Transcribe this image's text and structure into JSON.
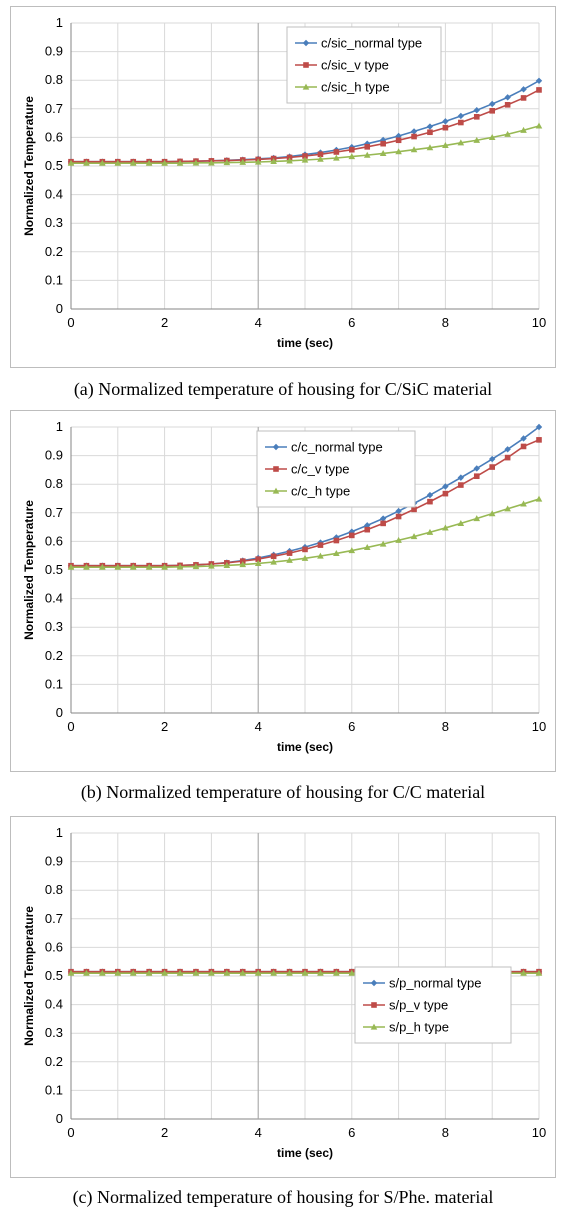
{
  "chart_data": [
    {
      "type": "line",
      "xlabel": "time (sec)",
      "ylabel": "Normalized Temperature",
      "xlim": [
        0,
        10
      ],
      "ylim": [
        0,
        1
      ],
      "xticks": [
        "0",
        "2",
        "4",
        "6",
        "8",
        "10"
      ],
      "yticks": [
        "0",
        "0.1",
        "0.2",
        "0.3",
        "0.4",
        "0.5",
        "0.6",
        "0.7",
        "0.8",
        "0.9",
        "1"
      ],
      "grid": true,
      "legend_position": "top-right",
      "x": [
        0,
        0.33,
        0.67,
        1.0,
        1.33,
        1.67,
        2.0,
        2.33,
        2.67,
        3.0,
        3.33,
        3.67,
        4.0,
        4.33,
        4.67,
        5.0,
        5.33,
        5.67,
        6.0,
        6.33,
        6.67,
        7.0,
        7.33,
        7.67,
        8.0,
        8.33,
        8.67,
        9.0,
        9.33,
        9.67,
        10.0
      ],
      "series": [
        {
          "name": "c/sic_normal type",
          "color": "#4a7ebb",
          "marker": "diamond",
          "values": [
            0.515,
            0.515,
            0.515,
            0.515,
            0.515,
            0.515,
            0.515,
            0.516,
            0.517,
            0.518,
            0.52,
            0.522,
            0.525,
            0.528,
            0.533,
            0.54,
            0.547,
            0.556,
            0.566,
            0.578,
            0.591,
            0.605,
            0.621,
            0.638,
            0.656,
            0.675,
            0.695,
            0.717,
            0.74,
            0.768,
            0.798
          ]
        },
        {
          "name": "c/sic_v type",
          "color": "#be4b48",
          "marker": "square",
          "values": [
            0.515,
            0.515,
            0.515,
            0.515,
            0.515,
            0.515,
            0.515,
            0.516,
            0.517,
            0.518,
            0.519,
            0.521,
            0.523,
            0.526,
            0.53,
            0.535,
            0.541,
            0.549,
            0.557,
            0.567,
            0.578,
            0.59,
            0.603,
            0.618,
            0.634,
            0.652,
            0.672,
            0.693,
            0.714,
            0.738,
            0.766
          ]
        },
        {
          "name": "c/sic_h type",
          "color": "#98b954",
          "marker": "triangle",
          "values": [
            0.51,
            0.51,
            0.51,
            0.51,
            0.51,
            0.51,
            0.51,
            0.51,
            0.511,
            0.511,
            0.512,
            0.513,
            0.514,
            0.516,
            0.518,
            0.521,
            0.524,
            0.528,
            0.533,
            0.538,
            0.544,
            0.55,
            0.557,
            0.564,
            0.572,
            0.581,
            0.59,
            0.6,
            0.611,
            0.625,
            0.64
          ]
        }
      ]
    },
    {
      "type": "line",
      "xlabel": "time (sec)",
      "ylabel": "Normalized Temperature",
      "xlim": [
        0,
        10
      ],
      "ylim": [
        0,
        1
      ],
      "xticks": [
        "0",
        "2",
        "4",
        "6",
        "8",
        "10"
      ],
      "yticks": [
        "0",
        "0.1",
        "0.2",
        "0.3",
        "0.4",
        "0.5",
        "0.6",
        "0.7",
        "0.8",
        "0.9",
        "1"
      ],
      "grid": true,
      "legend_position": "top-center",
      "x": [
        0,
        0.33,
        0.67,
        1.0,
        1.33,
        1.67,
        2.0,
        2.33,
        2.67,
        3.0,
        3.33,
        3.67,
        4.0,
        4.33,
        4.67,
        5.0,
        5.33,
        5.67,
        6.0,
        6.33,
        6.67,
        7.0,
        7.33,
        7.67,
        8.0,
        8.33,
        8.67,
        9.0,
        9.33,
        9.67,
        10.0
      ],
      "series": [
        {
          "name": "c/c_normal type",
          "color": "#4a7ebb",
          "marker": "diamond",
          "values": [
            0.515,
            0.515,
            0.515,
            0.515,
            0.515,
            0.515,
            0.515,
            0.516,
            0.518,
            0.521,
            0.526,
            0.533,
            0.542,
            0.553,
            0.566,
            0.58,
            0.596,
            0.614,
            0.634,
            0.656,
            0.68,
            0.706,
            0.733,
            0.762,
            0.792,
            0.823,
            0.855,
            0.888,
            0.922,
            0.96,
            1.0
          ]
        },
        {
          "name": "c/c_v type",
          "color": "#be4b48",
          "marker": "square",
          "values": [
            0.515,
            0.515,
            0.515,
            0.515,
            0.515,
            0.515,
            0.515,
            0.516,
            0.518,
            0.521,
            0.525,
            0.531,
            0.538,
            0.548,
            0.559,
            0.572,
            0.587,
            0.603,
            0.621,
            0.641,
            0.663,
            0.687,
            0.712,
            0.739,
            0.767,
            0.797,
            0.828,
            0.86,
            0.893,
            0.932,
            0.955
          ]
        },
        {
          "name": "c/c_h type",
          "color": "#98b954",
          "marker": "triangle",
          "values": [
            0.51,
            0.51,
            0.51,
            0.51,
            0.51,
            0.51,
            0.51,
            0.511,
            0.512,
            0.514,
            0.516,
            0.519,
            0.523,
            0.528,
            0.534,
            0.541,
            0.549,
            0.558,
            0.568,
            0.579,
            0.591,
            0.604,
            0.617,
            0.632,
            0.647,
            0.663,
            0.68,
            0.697,
            0.714,
            0.731,
            0.748
          ]
        }
      ]
    },
    {
      "type": "line",
      "xlabel": "time (sec)",
      "ylabel": "Normalized Temperature",
      "xlim": [
        0,
        10
      ],
      "ylim": [
        0,
        1
      ],
      "xticks": [
        "0",
        "2",
        "4",
        "6",
        "8",
        "10"
      ],
      "yticks": [
        "0",
        "0.1",
        "0.2",
        "0.3",
        "0.4",
        "0.5",
        "0.6",
        "0.7",
        "0.8",
        "0.9",
        "1"
      ],
      "grid": true,
      "legend_position": "center-right",
      "x": [
        0,
        0.33,
        0.67,
        1.0,
        1.33,
        1.67,
        2.0,
        2.33,
        2.67,
        3.0,
        3.33,
        3.67,
        4.0,
        4.33,
        4.67,
        5.0,
        5.33,
        5.67,
        6.0,
        6.33,
        6.67,
        7.0,
        7.33,
        7.67,
        8.0,
        8.33,
        8.67,
        9.0,
        9.33,
        9.67,
        10.0
      ],
      "series": [
        {
          "name": "s/p_normal type",
          "color": "#4a7ebb",
          "marker": "diamond",
          "values": [
            0.515,
            0.515,
            0.515,
            0.515,
            0.515,
            0.515,
            0.515,
            0.515,
            0.515,
            0.515,
            0.515,
            0.515,
            0.515,
            0.515,
            0.515,
            0.515,
            0.515,
            0.515,
            0.515,
            0.515,
            0.515,
            0.515,
            0.515,
            0.515,
            0.515,
            0.515,
            0.515,
            0.515,
            0.515,
            0.515,
            0.515
          ]
        },
        {
          "name": "s/p_v type",
          "color": "#be4b48",
          "marker": "square",
          "values": [
            0.515,
            0.515,
            0.515,
            0.515,
            0.515,
            0.515,
            0.515,
            0.515,
            0.515,
            0.515,
            0.515,
            0.515,
            0.515,
            0.515,
            0.515,
            0.515,
            0.515,
            0.515,
            0.515,
            0.515,
            0.515,
            0.515,
            0.515,
            0.515,
            0.515,
            0.515,
            0.515,
            0.515,
            0.515,
            0.515,
            0.515
          ]
        },
        {
          "name": "s/p_h type",
          "color": "#98b954",
          "marker": "triangle",
          "values": [
            0.51,
            0.51,
            0.51,
            0.51,
            0.51,
            0.51,
            0.51,
            0.51,
            0.51,
            0.51,
            0.51,
            0.51,
            0.51,
            0.51,
            0.51,
            0.51,
            0.51,
            0.51,
            0.51,
            0.51,
            0.51,
            0.51,
            0.51,
            0.51,
            0.51,
            0.51,
            0.51,
            0.51,
            0.51,
            0.51,
            0.51
          ]
        }
      ]
    }
  ],
  "captions": [
    "(a) Normalized temperature of housing for C/SiC material",
    "(b) Normalized temperature of housing for C/C material",
    "(c) Normalized temperature of housing for S/Phe. material"
  ]
}
